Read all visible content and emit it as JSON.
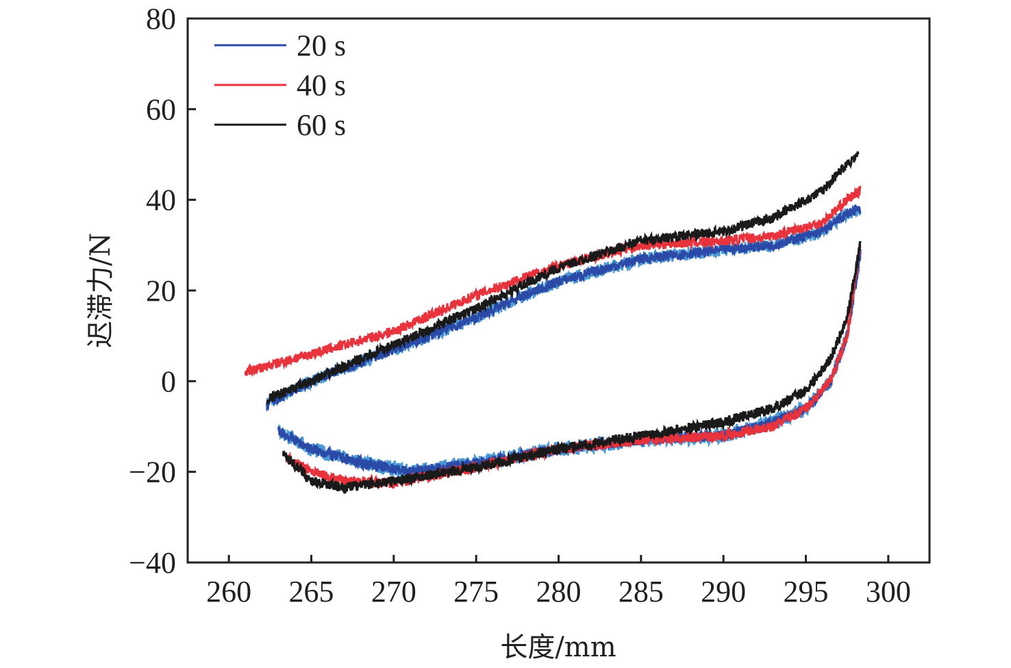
{
  "chart_data": {
    "type": "line",
    "title": "",
    "xlabel": "长度/mm",
    "ylabel": "迟滞力/N",
    "xlim": [
      257.5,
      302.5
    ],
    "ylim": [
      -40,
      80
    ],
    "xticks": [
      260,
      265,
      270,
      275,
      280,
      285,
      290,
      295,
      300
    ],
    "yticks": [
      -40,
      -20,
      0,
      20,
      40,
      60,
      80
    ],
    "xtick_labels": [
      "260",
      "265",
      "270",
      "275",
      "280",
      "285",
      "290",
      "295",
      "300"
    ],
    "ytick_labels": [
      "−40",
      "−20",
      "0",
      "20",
      "40",
      "60",
      "80"
    ],
    "grid": false,
    "legend_position": "top-left",
    "series": [
      {
        "name": "20 s",
        "color": "#2b4aa8",
        "accent_color": "#4a98d4",
        "loading": {
          "x": [
            262.3,
            265,
            270,
            275,
            278,
            280,
            285,
            290,
            293,
            296,
            297.5,
            298.3
          ],
          "y": [
            -5,
            0,
            7,
            14,
            19,
            22,
            27,
            29,
            30,
            33,
            37,
            38
          ]
        },
        "unloading": {
          "x": [
            263,
            265,
            268,
            271,
            275,
            280,
            285,
            290,
            293,
            295,
            296.5,
            297.5,
            298.3
          ],
          "y": [
            -11,
            -15,
            -18,
            -20,
            -18,
            -15,
            -13,
            -12,
            -9,
            -6,
            0,
            10,
            28
          ]
        }
      },
      {
        "name": "40 s",
        "color": "#e8323c",
        "loading": {
          "x": [
            261,
            265,
            270,
            275,
            280,
            285,
            290,
            293,
            296,
            297.5,
            298.3
          ],
          "y": [
            2,
            6,
            11,
            19,
            25.5,
            30,
            31,
            32,
            35,
            40,
            42
          ]
        },
        "unloading": {
          "x": [
            263.5,
            265,
            267,
            270,
            275,
            280,
            285,
            290,
            293,
            295,
            296.5,
            297.5,
            298.3
          ],
          "y": [
            -17,
            -20,
            -22,
            -22.5,
            -19,
            -15,
            -13,
            -12,
            -10,
            -6,
            0,
            10,
            30
          ]
        }
      },
      {
        "name": "60 s",
        "color": "#1a1a1a",
        "loading": {
          "x": [
            262.3,
            265,
            270,
            275,
            280,
            285,
            290,
            293,
            296,
            297.5,
            298.2
          ],
          "y": [
            -4,
            0,
            8,
            16,
            25,
            31,
            33,
            36,
            42,
            48,
            50
          ]
        },
        "unloading": {
          "x": [
            263.3,
            265,
            267,
            270,
            275,
            280,
            285,
            290,
            293,
            295,
            296.5,
            297.5,
            298.3
          ],
          "y": [
            -16,
            -22,
            -23.5,
            -22,
            -19,
            -15,
            -12,
            -9,
            -6,
            -2,
            5,
            14,
            30
          ]
        }
      }
    ]
  }
}
